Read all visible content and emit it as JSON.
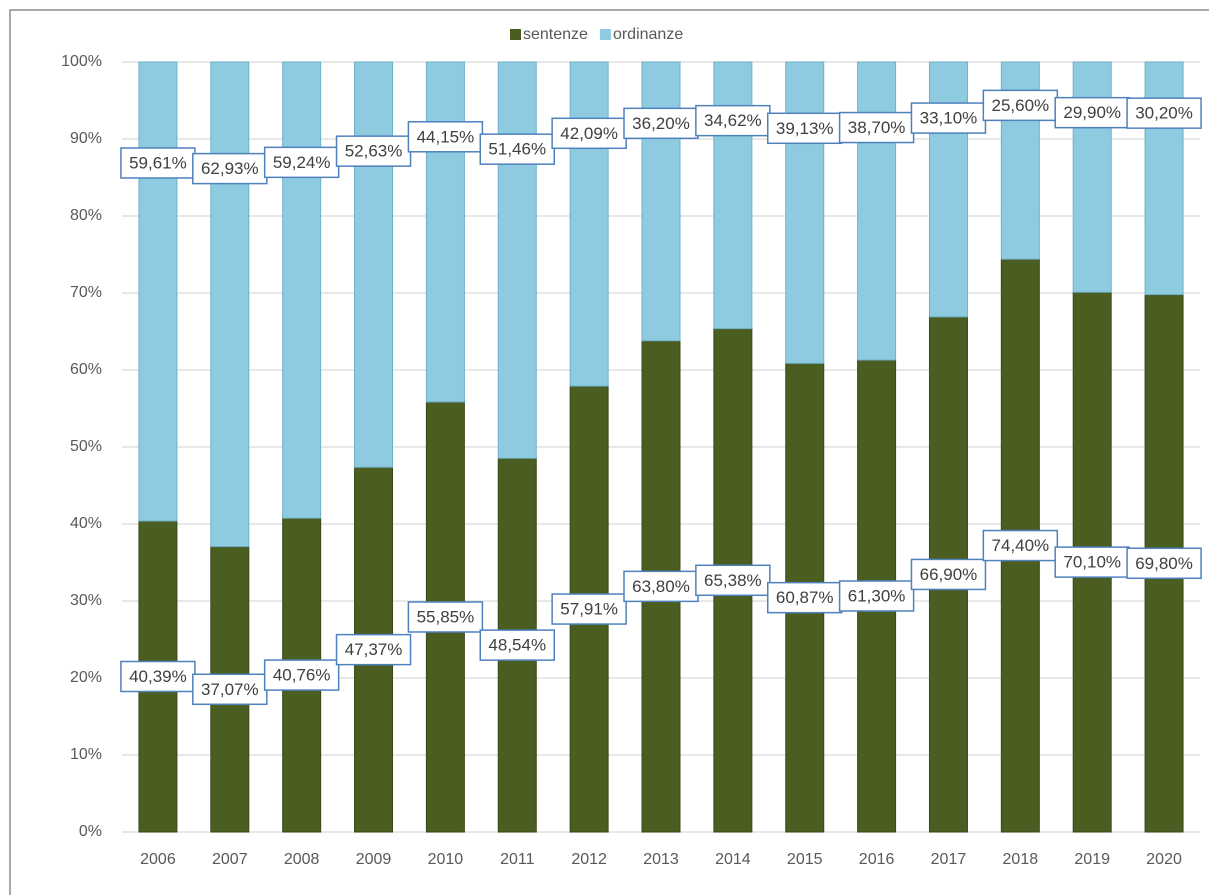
{
  "chart_data": {
    "type": "stacked_bar_100",
    "categories": [
      "2006",
      "2007",
      "2008",
      "2009",
      "2010",
      "2011",
      "2012",
      "2013",
      "2014",
      "2015",
      "2016",
      "2017",
      "2018",
      "2019",
      "2020"
    ],
    "series": [
      {
        "name": "sentenze",
        "color": "#4b5e22",
        "values": [
          40.39,
          37.07,
          40.76,
          47.37,
          55.85,
          48.54,
          57.91,
          63.8,
          65.38,
          60.87,
          61.3,
          66.9,
          74.4,
          70.1,
          69.8
        ],
        "value_labels": [
          "40,39%",
          "37,07%",
          "40,76%",
          "47,37%",
          "55,85%",
          "48,54%",
          "57,91%",
          "63,80%",
          "65,38%",
          "60,87%",
          "61,30%",
          "66,90%",
          "74,40%",
          "70,10%",
          "69,80%"
        ]
      },
      {
        "name": "ordinanze",
        "color": "#8fcbe0",
        "values": [
          59.61,
          62.93,
          59.24,
          52.63,
          44.15,
          51.46,
          42.09,
          36.2,
          34.62,
          39.13,
          38.7,
          33.1,
          25.6,
          29.9,
          30.2
        ],
        "value_labels": [
          "59,61%",
          "62,93%",
          "59,24%",
          "52,63%",
          "44,15%",
          "51,46%",
          "42,09%",
          "36,20%",
          "34,62%",
          "39,13%",
          "38,70%",
          "33,10%",
          "25,60%",
          "29,90%",
          "30,20%"
        ]
      }
    ],
    "ylim": [
      0,
      100
    ],
    "yticks": [
      {
        "value": 0,
        "label": "0%"
      },
      {
        "value": 10,
        "label": "10%"
      },
      {
        "value": 20,
        "label": "20%"
      },
      {
        "value": 30,
        "label": "30%"
      },
      {
        "value": 40,
        "label": "40%"
      },
      {
        "value": 50,
        "label": "50%"
      },
      {
        "value": 60,
        "label": "60%"
      },
      {
        "value": 70,
        "label": "70%"
      },
      {
        "value": 80,
        "label": "80%"
      },
      {
        "value": 90,
        "label": "90%"
      },
      {
        "value": 100,
        "label": "100%"
      }
    ],
    "grid": true,
    "legend": "top"
  }
}
